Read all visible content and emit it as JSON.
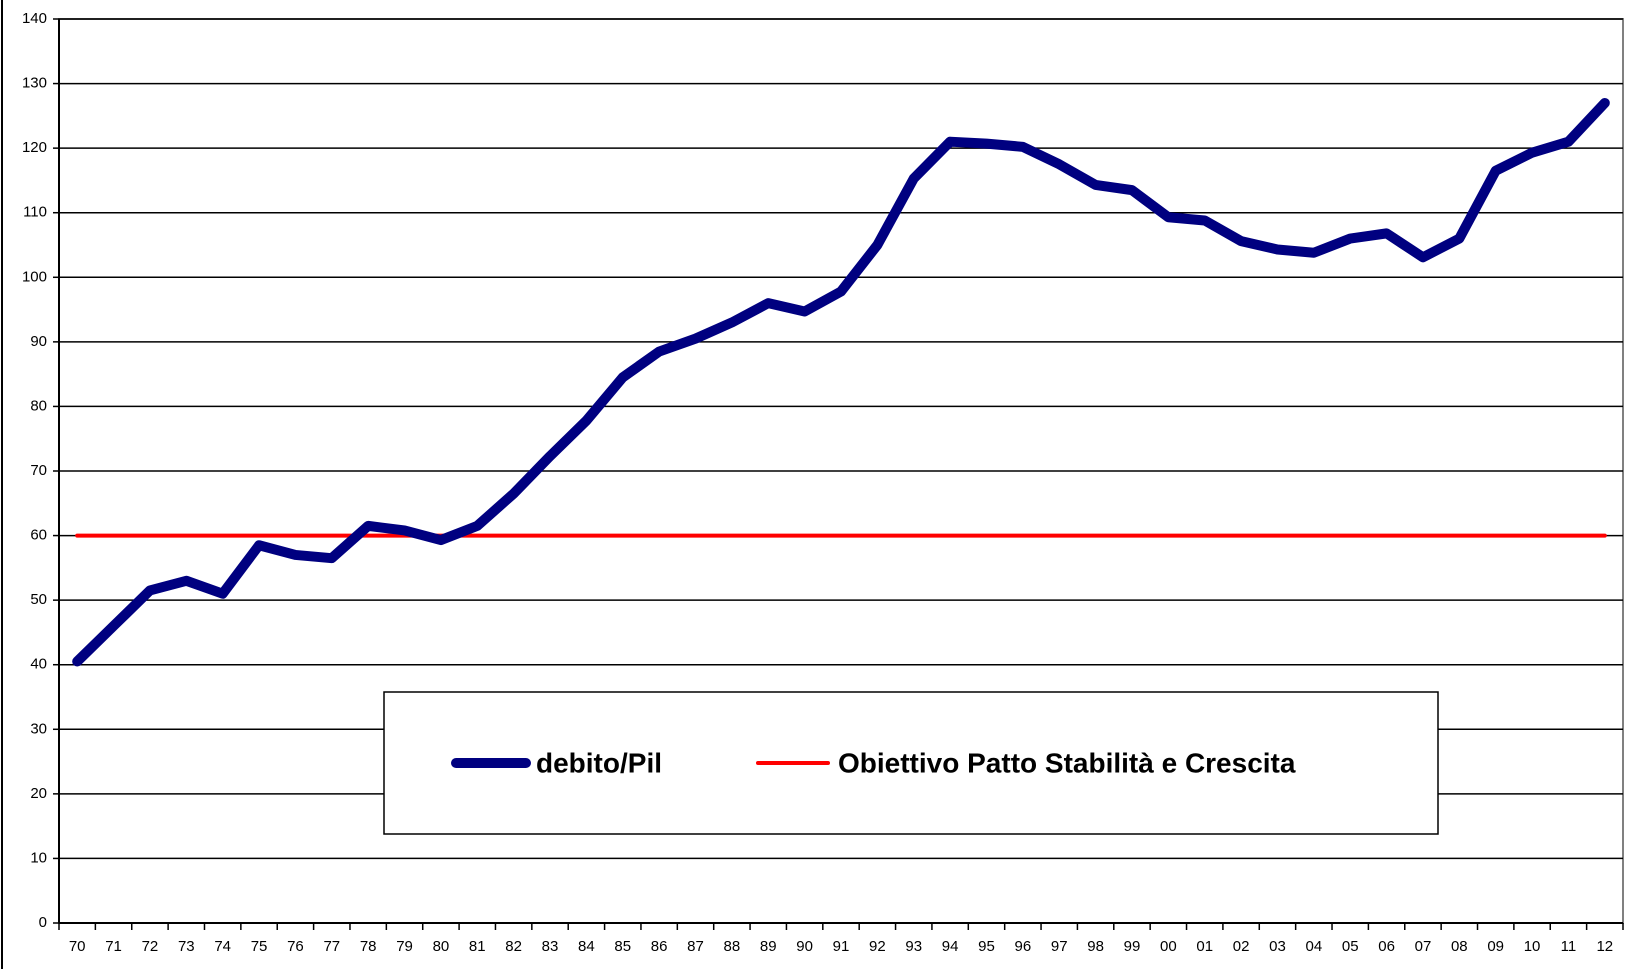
{
  "chart_data": {
    "type": "line",
    "categories": [
      "70",
      "71",
      "72",
      "73",
      "74",
      "75",
      "76",
      "77",
      "78",
      "79",
      "80",
      "81",
      "82",
      "83",
      "84",
      "85",
      "86",
      "87",
      "88",
      "89",
      "90",
      "91",
      "92",
      "93",
      "94",
      "95",
      "96",
      "97",
      "98",
      "99",
      "00",
      "01",
      "02",
      "03",
      "04",
      "05",
      "06",
      "07",
      "08",
      "09",
      "10",
      "11",
      "12"
    ],
    "series": [
      {
        "name": "debito/Pil",
        "color": "#000080",
        "values": [
          40.5,
          46,
          51.5,
          53,
          51,
          58.5,
          57,
          56.5,
          61.5,
          60.8,
          59.3,
          61.5,
          66.5,
          72.3,
          77.8,
          84.5,
          88.5,
          90.5,
          93,
          96,
          94.7,
          97.8,
          105,
          115.3,
          121,
          120.7,
          120.2,
          117.5,
          114.3,
          113.5,
          109.3,
          108.8,
          105.6,
          104.3,
          103.8,
          106,
          106.8,
          103.1,
          106,
          116.5,
          119.3,
          121,
          127
        ]
      },
      {
        "name": "Obiettivo Patto Stabilità e Crescita",
        "color": "#ff0000",
        "values": [
          60,
          60,
          60,
          60,
          60,
          60,
          60,
          60,
          60,
          60,
          60,
          60,
          60,
          60,
          60,
          60,
          60,
          60,
          60,
          60,
          60,
          60,
          60,
          60,
          60,
          60,
          60,
          60,
          60,
          60,
          60,
          60,
          60,
          60,
          60,
          60,
          60,
          60,
          60,
          60,
          60,
          60,
          60
        ]
      }
    ],
    "ylim": [
      0,
      140
    ],
    "yticks": [
      0,
      10,
      20,
      30,
      40,
      50,
      60,
      70,
      80,
      90,
      100,
      110,
      120,
      130,
      140
    ],
    "grid": true
  }
}
